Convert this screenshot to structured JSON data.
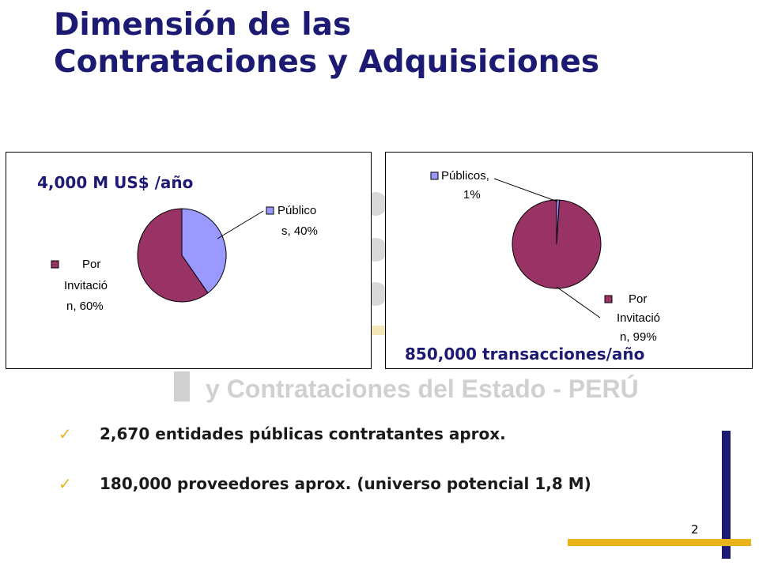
{
  "slide": {
    "title_lines": [
      "Dimensión de las",
      "Contrataciones y Adquisiciones"
    ],
    "watermark_text": "y Contrataciones del Estado - PERÚ",
    "page_number": "2",
    "colors": {
      "title": "#1c1a72",
      "accent_gold": "#e8b31c",
      "accent_navy": "#1c1a72",
      "slice_publicos": "#9999ff",
      "slice_invitacion": "#993366",
      "watermark": "#d0d0d0"
    }
  },
  "charts": {
    "left": {
      "overlay_label": "4,000 M US$ /año"
    },
    "right": {
      "overlay_label": "850,000 transacciones/año"
    }
  },
  "chart_data": [
    {
      "type": "pie",
      "title": "",
      "slices": [
        {
          "label_lines": [
            "Público",
            "s, 40%"
          ],
          "value": 40,
          "color": "#9999ff"
        },
        {
          "label_lines": [
            "Por",
            "Invitació",
            "n, 60%"
          ],
          "value": 60,
          "color": "#993366"
        }
      ]
    },
    {
      "type": "pie",
      "title": "",
      "slices": [
        {
          "label_lines": [
            "Públicos,",
            "1%"
          ],
          "value": 1,
          "color": "#9999ff"
        },
        {
          "label_lines": [
            "Por",
            "Invitació",
            "n, 99%"
          ],
          "value": 99,
          "color": "#993366"
        }
      ]
    }
  ],
  "bullets": [
    {
      "icon": "check-icon",
      "text": "2,670 entidades públicas contratantes aprox."
    },
    {
      "icon": "check-icon",
      "text": "180,000 proveedores aprox. (universo potencial 1,8 M)"
    }
  ]
}
